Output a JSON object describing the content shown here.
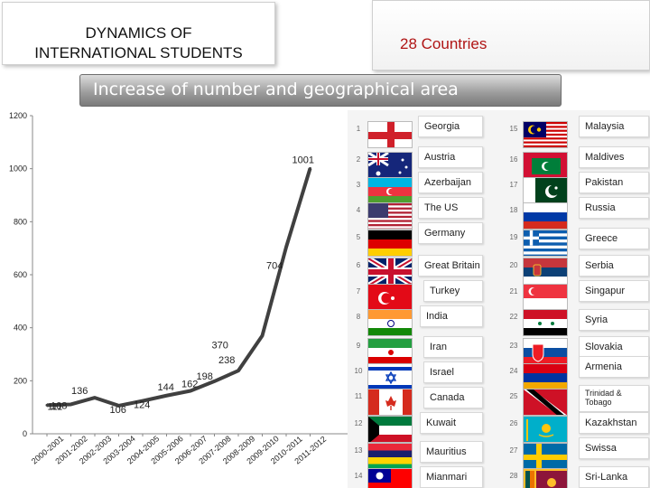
{
  "header": {
    "title_line1": "DYNAMICS OF",
    "title_line2": "INTERNATIONAL STUDENTS",
    "countries": "28  Countries",
    "banner": "Increase of number and geographical area"
  },
  "chart_data": {
    "type": "line",
    "categories": [
      "2000-2001",
      "2001-2002",
      "2002-2003",
      "2003-2004",
      "2004-2005",
      "2005-2006",
      "2006-2007",
      "2007-2008",
      "2008-2009",
      "2009-2010",
      "2010-2011",
      "2011-2012"
    ],
    "values": [
      108,
      111,
      136,
      106,
      124,
      144,
      162,
      198,
      238,
      370,
      704,
      1001
    ],
    "ylim": [
      0,
      1200
    ],
    "yticks": [
      "0",
      "200",
      "400",
      "600",
      "800",
      "1000",
      "1200"
    ],
    "grid": false,
    "color": "#404040"
  },
  "countries": [
    {
      "num": "1",
      "name": "Georgia",
      "icon": "flag-georgia-icon"
    },
    {
      "num": "2",
      "name": "Austria",
      "icon": "flag-australia-icon"
    },
    {
      "num": "3",
      "name": "Azerbaijan",
      "icon": "flag-azerbaijan-icon"
    },
    {
      "num": "4",
      "name": "The US",
      "icon": "flag-usa-icon"
    },
    {
      "num": "5",
      "name": "Germany",
      "icon": "flag-germany-icon"
    },
    {
      "num": "6",
      "name": "Great Britain",
      "icon": "flag-uk-icon"
    },
    {
      "num": "7",
      "name": "Turkey",
      "icon": "flag-turkey-icon"
    },
    {
      "num": "8",
      "name": "India",
      "icon": "flag-india-icon"
    },
    {
      "num": "9",
      "name": "Iran",
      "icon": "flag-iran-icon"
    },
    {
      "num": "10",
      "name": "Israel",
      "icon": "flag-israel-icon"
    },
    {
      "num": "11",
      "name": "Canada",
      "icon": "flag-canada-icon"
    },
    {
      "num": "12",
      "name": "Kuwait",
      "icon": "flag-kuwait-icon"
    },
    {
      "num": "13",
      "name": "Mauritius",
      "icon": "flag-mauritius-icon"
    },
    {
      "num": "14",
      "name": "Mianmari",
      "icon": "flag-taiwan-icon"
    },
    {
      "num": "15",
      "name": "Malaysia",
      "icon": "flag-malaysia-icon"
    },
    {
      "num": "16",
      "name": "Maldives",
      "icon": "flag-maldives-icon"
    },
    {
      "num": "17",
      "name": "Pakistan",
      "icon": "flag-pakistan-icon"
    },
    {
      "num": "18",
      "name": "Russia",
      "icon": "flag-russia-icon"
    },
    {
      "num": "19",
      "name": "Greece",
      "icon": "flag-greece-icon"
    },
    {
      "num": "20",
      "name": "Serbia",
      "icon": "flag-serbia-icon"
    },
    {
      "num": "21",
      "name": "Singapur",
      "icon": "flag-singapore-icon"
    },
    {
      "num": "22",
      "name": "Syria",
      "icon": "flag-syria-icon"
    },
    {
      "num": "23",
      "name": "Slovakia",
      "icon": "flag-slovakia-icon"
    },
    {
      "num": "24",
      "name": "Armenia",
      "icon": "flag-armenia-icon"
    },
    {
      "num": "25",
      "name": "Trinidad & Tobago",
      "icon": "flag-trinidad-icon"
    },
    {
      "num": "26",
      "name": "Kazakhstan",
      "icon": "flag-kazakhstan-icon"
    },
    {
      "num": "27",
      "name": "Swissa",
      "icon": "flag-sweden-icon"
    },
    {
      "num": "28",
      "name": "Sri-Lanka",
      "icon": "flag-srilanka-icon"
    }
  ]
}
